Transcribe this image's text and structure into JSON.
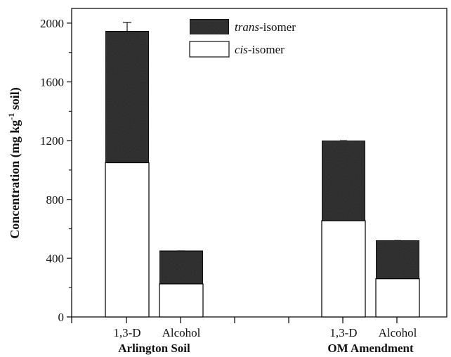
{
  "chart_data": {
    "type": "bar",
    "stacked": true,
    "categories": [
      "1,3-D",
      "Alcohol",
      "1,3-D",
      "Alcohol"
    ],
    "groups": [
      {
        "label": "Arlington Soil",
        "category_indices": [
          0,
          1
        ]
      },
      {
        "label": "OM Amendment",
        "category_indices": [
          2,
          3
        ]
      }
    ],
    "series": [
      {
        "name": "cis",
        "legend_suffix": "-isomer",
        "color": "#ffffff",
        "values": [
          1050,
          225,
          655,
          260
        ]
      },
      {
        "name": "trans",
        "legend_suffix": "-isomer",
        "color": "#3a3a3a",
        "values": [
          895,
          225,
          545,
          260
        ]
      }
    ],
    "error_bars": [
      60,
      0,
      0,
      0
    ],
    "ylabel": {
      "prefix": "Concentration (mg kg",
      "superscript": "-1",
      "suffix": " soil)"
    },
    "ylim": [
      0,
      2100
    ],
    "yticks": [
      0,
      400,
      800,
      1200,
      1600,
      2000
    ],
    "grid": false,
    "legend_position": "top-center"
  }
}
